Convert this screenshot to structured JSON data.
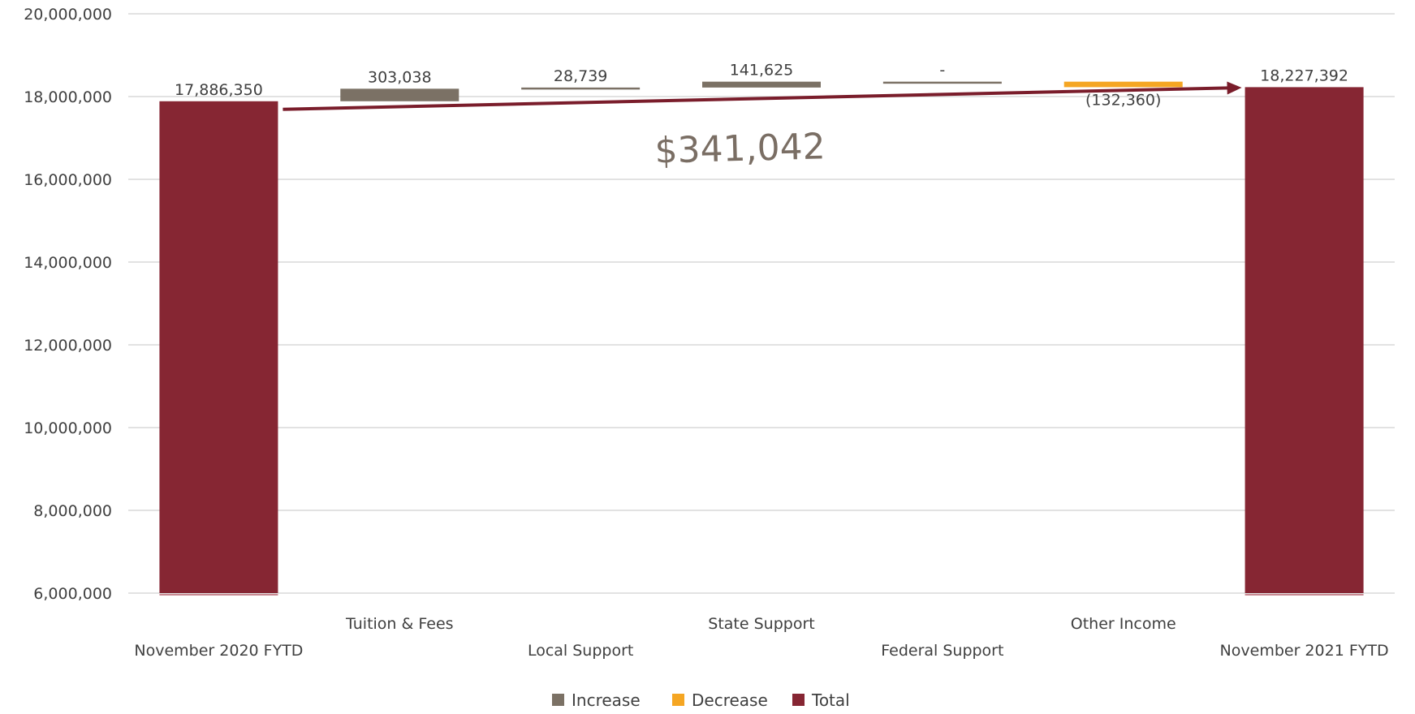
{
  "chart_data": {
    "type": "waterfall",
    "categories": [
      "November 2020 FYTD",
      "Tuition & Fees",
      "Local Support",
      "State Support",
      "Federal Support",
      "Other Income",
      "November 2021 FYTD"
    ],
    "values": [
      17886350,
      303038,
      28739,
      141625,
      0,
      -132360,
      18227392
    ],
    "kinds": [
      "total",
      "increase",
      "increase",
      "increase",
      "increase",
      "decrease",
      "total"
    ],
    "data_labels": [
      "17,886,350",
      "303,038",
      "28,739",
      "141,625",
      "-",
      "(132,360)",
      "18,227,392"
    ],
    "ylim": [
      6000000,
      20000000
    ],
    "yticks": [
      6000000,
      8000000,
      10000000,
      12000000,
      14000000,
      16000000,
      18000000,
      20000000
    ],
    "ytick_labels": [
      "6,000,000",
      "8,000,000",
      "10,000,000",
      "12,000,000",
      "14,000,000",
      "16,000,000",
      "18,000,000",
      "20,000,000"
    ],
    "grid": true,
    "legend": {
      "position": "bottom",
      "items": [
        {
          "label": "Increase",
          "color": "#7b7165"
        },
        {
          "label": "Decrease",
          "color": "#f5a623"
        },
        {
          "label": "Total",
          "color": "#862633"
        }
      ]
    },
    "annotation": {
      "text": "$341,042",
      "arrow_color": "#7a1d2b"
    },
    "title": "",
    "xlabel": "",
    "ylabel": ""
  }
}
